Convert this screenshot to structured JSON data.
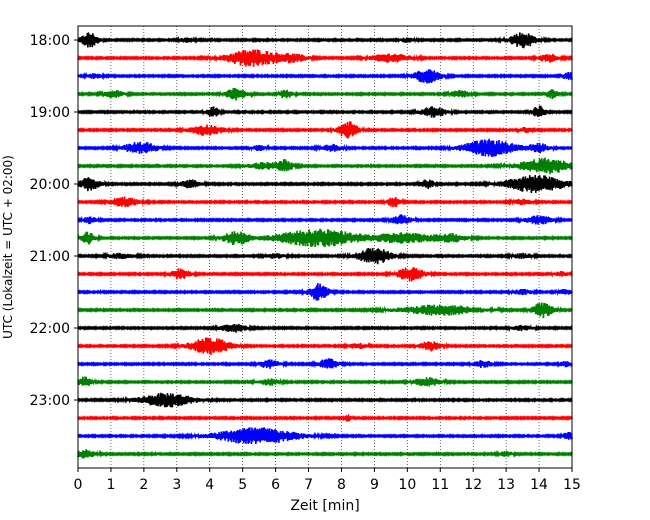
{
  "chart_data": {
    "type": "line",
    "title": "",
    "xlabel": "Zeit  [min]",
    "ylabel": "UTC (Lokalzeit = UTC + 02:00)",
    "xlim": [
      0,
      15
    ],
    "x_ticks": [
      "0",
      "1",
      "2",
      "3",
      "4",
      "5",
      "6",
      "7",
      "8",
      "9",
      "10",
      "11",
      "12",
      "13",
      "14",
      "15"
    ],
    "y_tick_labels": [
      "18:00",
      "19:00",
      "20:00",
      "21:00",
      "22:00",
      "23:00"
    ],
    "y_tick_rows": [
      0,
      4,
      8,
      12,
      16,
      20
    ],
    "grid": "vertical dotted",
    "trace_colors": [
      "#000000",
      "#ff0000",
      "#0000ff",
      "#008000"
    ],
    "trace_minutes": 15,
    "traces": [
      {
        "start": "18:00",
        "bursts": [
          [
            0.35,
            0.9,
            0.25
          ],
          [
            3.3,
            0.3,
            0.2
          ],
          [
            10,
            0.25,
            0.2
          ],
          [
            13.5,
            0.9,
            0.4
          ]
        ]
      },
      {
        "start": "18:15",
        "bursts": [
          [
            5.3,
            1.0,
            0.8
          ],
          [
            6.5,
            0.4,
            0.5
          ],
          [
            9.5,
            0.5,
            0.6
          ],
          [
            14.3,
            0.5,
            0.3
          ]
        ]
      },
      {
        "start": "18:30",
        "bursts": [
          [
            0.5,
            0.3,
            0.2
          ],
          [
            10.6,
            0.8,
            0.4
          ],
          [
            14.9,
            0.4,
            0.2
          ]
        ]
      },
      {
        "start": "18:45",
        "bursts": [
          [
            1.1,
            0.4,
            0.3
          ],
          [
            4.8,
            0.7,
            0.3
          ],
          [
            6.3,
            0.5,
            0.2
          ],
          [
            11.6,
            0.4,
            0.3
          ],
          [
            14.4,
            0.5,
            0.2
          ]
        ]
      },
      {
        "start": "19:00",
        "bursts": [
          [
            4.1,
            0.6,
            0.2
          ],
          [
            10.8,
            0.6,
            0.4
          ],
          [
            14,
            0.7,
            0.2
          ]
        ]
      },
      {
        "start": "19:15",
        "bursts": [
          [
            3.9,
            0.6,
            0.5
          ],
          [
            8.2,
            1.0,
            0.3
          ],
          [
            13.6,
            0.3,
            0.2
          ]
        ]
      },
      {
        "start": "19:30",
        "bursts": [
          [
            1.9,
            0.7,
            0.5
          ],
          [
            5.5,
            0.3,
            0.2
          ],
          [
            7.7,
            0.4,
            0.3
          ],
          [
            12.5,
            1.0,
            0.8
          ],
          [
            14,
            0.5,
            0.3
          ]
        ]
      },
      {
        "start": "19:45",
        "bursts": [
          [
            5.7,
            0.4,
            0.6
          ],
          [
            6.3,
            0.6,
            0.2
          ],
          [
            14.2,
            0.9,
            0.8
          ]
        ]
      },
      {
        "start": "20:00",
        "bursts": [
          [
            0.35,
            0.8,
            0.3
          ],
          [
            3.4,
            0.5,
            0.3
          ],
          [
            10.6,
            0.6,
            0.2
          ],
          [
            13.9,
            1.0,
            0.9
          ]
        ]
      },
      {
        "start": "20:15",
        "bursts": [
          [
            1.4,
            0.6,
            0.4
          ],
          [
            9.6,
            0.6,
            0.2
          ],
          [
            13.5,
            0.3,
            0.3
          ]
        ]
      },
      {
        "start": "20:30",
        "bursts": [
          [
            0.35,
            0.4,
            0.2
          ],
          [
            9.8,
            0.6,
            0.3
          ],
          [
            14.0,
            0.5,
            0.4
          ]
        ]
      },
      {
        "start": "20:45",
        "bursts": [
          [
            0.3,
            0.7,
            0.2
          ],
          [
            4.8,
            0.8,
            0.4
          ],
          [
            7.3,
            1.0,
            1.3
          ],
          [
            9.9,
            0.6,
            0.8
          ],
          [
            11.3,
            0.5,
            0.5
          ]
        ]
      },
      {
        "start": "21:00",
        "bursts": [
          [
            9.0,
            1.0,
            0.5
          ],
          [
            1.3,
            0.3,
            0.4
          ],
          [
            6.0,
            0.3,
            0.3
          ],
          [
            13.5,
            0.3,
            0.3
          ]
        ]
      },
      {
        "start": "21:15",
        "bursts": [
          [
            3.1,
            0.6,
            0.3
          ],
          [
            10.1,
            0.8,
            0.4
          ],
          [
            14.7,
            0.3,
            0.2
          ]
        ]
      },
      {
        "start": "21:30",
        "bursts": [
          [
            7.3,
            1.0,
            0.3
          ],
          [
            13.5,
            0.3,
            0.3
          ],
          [
            14.8,
            0.3,
            0.2
          ]
        ]
      },
      {
        "start": "21:45",
        "bursts": [
          [
            11.0,
            0.6,
            1.2
          ],
          [
            14.1,
            0.9,
            0.3
          ]
        ]
      },
      {
        "start": "22:00",
        "bursts": [
          [
            4.7,
            0.5,
            0.4
          ],
          [
            13.5,
            0.3,
            0.3
          ]
        ]
      },
      {
        "start": "22:15",
        "bursts": [
          [
            4.0,
            1.0,
            0.6
          ],
          [
            10.7,
            0.6,
            0.3
          ],
          [
            8.5,
            0.3,
            0.3
          ]
        ]
      },
      {
        "start": "22:30",
        "bursts": [
          [
            5.8,
            0.5,
            0.3
          ],
          [
            7.6,
            0.6,
            0.3
          ],
          [
            12.3,
            0.4,
            0.3
          ],
          [
            14.8,
            0.3,
            0.2
          ]
        ]
      },
      {
        "start": "22:45",
        "bursts": [
          [
            0.2,
            0.6,
            0.2
          ],
          [
            5.8,
            0.4,
            0.3
          ],
          [
            10.6,
            0.5,
            0.4
          ]
        ]
      },
      {
        "start": "23:00",
        "bursts": [
          [
            2.7,
            0.8,
            0.8
          ]
        ]
      },
      {
        "start": "23:15",
        "bursts": [
          [
            8.2,
            0.4,
            0.1
          ]
        ]
      },
      {
        "start": "23:30",
        "bursts": [
          [
            5.4,
            1.0,
            1.2
          ],
          [
            14.9,
            0.4,
            0.2
          ]
        ]
      },
      {
        "start": "23:45",
        "bursts": [
          [
            0.2,
            0.5,
            0.3
          ],
          [
            13,
            0.3,
            0.2
          ]
        ]
      }
    ]
  }
}
